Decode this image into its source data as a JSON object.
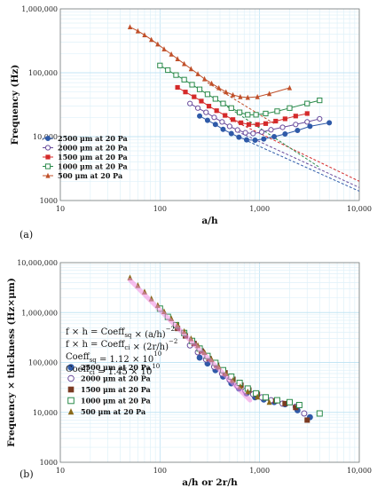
{
  "chart_data": [
    {
      "type": "scatter",
      "panel_label": "(a)",
      "xlabel": "a/h",
      "ylabel": "Frequency (Hz)",
      "xscale": "log",
      "yscale": "log",
      "xlim": [
        10,
        10000
      ],
      "ylim": [
        1000,
        1000000
      ],
      "x_ticks": [
        "10",
        "100",
        "1,000",
        "10,000"
      ],
      "y_ticks": [
        "1000",
        "10,000",
        "100,000",
        "1,000,000"
      ],
      "grid": true,
      "legend_position": "lower-left",
      "series": [
        {
          "name": "2500  μm at 20 Pa",
          "color": "#2f5aa8",
          "marker": "circle-filled",
          "x": [
            250,
            300,
            360,
            430,
            520,
            620,
            740,
            900,
            1100,
            1400,
            1800,
            2400,
            3200,
            5000
          ],
          "y": [
            21000,
            18000,
            15500,
            13000,
            11200,
            9800,
            8900,
            8800,
            9200,
            10000,
            11000,
            12500,
            14500,
            16500
          ],
          "fit_line": {
            "x": [
              700,
              10000
            ],
            "y": [
              9000,
              1400
            ]
          }
        },
        {
          "name": "2000  μm at 20 Pa",
          "color": "#6a4c9c",
          "marker": "circle-open",
          "x": [
            200,
            240,
            290,
            350,
            420,
            500,
            600,
            720,
            860,
            1050,
            1300,
            1700,
            2300,
            3000,
            4000
          ],
          "y": [
            33000,
            28000,
            24000,
            20000,
            17000,
            14500,
            12700,
            11500,
            11200,
            11800,
            12800,
            14000,
            15500,
            17000,
            19000
          ],
          "fit_line": {
            "x": [
              600,
              10000
            ],
            "y": [
              12000,
              1600
            ]
          }
        },
        {
          "name": "1500  μm at 20 Pa",
          "color": "#d42a2a",
          "marker": "square-filled",
          "x": [
            150,
            180,
            220,
            260,
            310,
            370,
            450,
            540,
            650,
            780,
            950,
            1150,
            1450,
            1800,
            2300,
            3000
          ],
          "y": [
            59000,
            50000,
            42000,
            36000,
            30000,
            25500,
            21500,
            18500,
            16500,
            15500,
            15500,
            16000,
            17500,
            19000,
            21000,
            23000
          ],
          "fit_line": {
            "x": [
              500,
              10000
            ],
            "y": [
              19000,
              2000
            ]
          }
        },
        {
          "name": "1000  μm at 20 Pa",
          "color": "#2a8a4a",
          "marker": "square-open",
          "x": [
            100,
            120,
            145,
            175,
            210,
            250,
            300,
            360,
            430,
            520,
            630,
            760,
            920,
            1150,
            1500,
            2000,
            3000,
            4000
          ],
          "y": [
            130000,
            110000,
            92000,
            78000,
            65000,
            55000,
            46000,
            39000,
            33000,
            28000,
            24000,
            22000,
            22000,
            23000,
            25000,
            28000,
            33000,
            37000
          ],
          "fit_line": {
            "x": [
              400,
              4000
            ],
            "y": [
              35000,
              3300
            ]
          }
        },
        {
          "name": "500  μm at 20 Pa",
          "color": "#c0502a",
          "marker": "triangle-filled",
          "x": [
            50,
            60,
            70,
            82,
            95,
            110,
            130,
            150,
            175,
            205,
            240,
            280,
            330,
            390,
            460,
            540,
            640,
            760,
            950,
            1250,
            2000
          ],
          "y": [
            520000,
            450000,
            390000,
            330000,
            280000,
            235000,
            195000,
            165000,
            138000,
            115000,
            96000,
            80000,
            68000,
            58000,
            50000,
            45000,
            42000,
            41000,
            42000,
            47000,
            58000
          ],
          "fit_line": {
            "x": [
              300,
              1400
            ],
            "y": [
              70000,
              16000
            ]
          }
        }
      ]
    },
    {
      "type": "scatter",
      "panel_label": "(b)",
      "xlabel": "a/h or 2r/h",
      "ylabel": "Frequency × thickness (Hz×μm)",
      "xscale": "log",
      "yscale": "log",
      "xlim": [
        10,
        10000
      ],
      "ylim": [
        1000,
        10000000
      ],
      "x_ticks": [
        "10",
        "100",
        "1,000",
        "10,000"
      ],
      "y_ticks": [
        "1000",
        "10,000",
        "100,000",
        "1,000,000",
        "10,000,000"
      ],
      "grid": true,
      "legend_position": "lower-left",
      "equations": [
        "f × h = Coeff_sq × (a/h)^−2",
        "f × h = Coeff_ci × (2r/h)^−2",
        "Coeff_sq = 1.12 × 10^10",
        "Coeff_ci = 1.45 × 10^10"
      ],
      "series": [
        {
          "name": "2500  μm at 20 Pa",
          "color": "#2f5aa8",
          "marker": "circle-filled",
          "x": [
            250,
            300,
            360,
            430,
            520,
            620,
            740,
            900,
            1100,
            1400,
            1800,
            2400,
            3200
          ],
          "y": [
            125000,
            95000,
            70000,
            52000,
            38000,
            30000,
            24000,
            20000,
            18000,
            16000,
            14500,
            11000,
            8000
          ]
        },
        {
          "name": "2000  μm at 20 Pa",
          "color": "#6a4c9c",
          "marker": "circle-open",
          "x": [
            200,
            240,
            290,
            350,
            420,
            500,
            600,
            720,
            860,
            1050,
            1300,
            1700,
            2300,
            2800
          ],
          "y": [
            220000,
            160000,
            115000,
            82000,
            60000,
            45000,
            34000,
            27000,
            23000,
            20000,
            17500,
            15000,
            13000,
            9500
          ]
        },
        {
          "name": "1500  μm at 20 Pa",
          "color": "#7a3a22",
          "marker": "square-filled",
          "x": [
            150,
            180,
            220,
            260,
            310,
            370,
            450,
            540,
            650,
            780,
            950,
            1150,
            1450,
            1800,
            2300,
            3000
          ],
          "y": [
            480000,
            340000,
            240000,
            170000,
            120000,
            88000,
            62000,
            46000,
            35000,
            28000,
            23000,
            19500,
            17000,
            15000,
            12500,
            7000
          ]
        },
        {
          "name": "1000  μm at 20 Pa",
          "color": "#2a8a4a",
          "marker": "square-open",
          "x": [
            100,
            120,
            145,
            175,
            210,
            250,
            300,
            360,
            430,
            520,
            630,
            760,
            920,
            1150,
            1500,
            2000,
            2500,
            4000
          ],
          "y": [
            1200000,
            820000,
            560000,
            390000,
            270000,
            190000,
            135000,
            98000,
            70000,
            52000,
            39000,
            30000,
            24000,
            20000,
            17500,
            16000,
            14000,
            9500
          ]
        },
        {
          "name": "500  μm at 20 Pa",
          "color": "#8a6a1a",
          "marker": "triangle-filled",
          "x": [
            50,
            60,
            70,
            82,
            95,
            110,
            130,
            150,
            175,
            205,
            240,
            280,
            330,
            390,
            460,
            540,
            640,
            760,
            950,
            1250
          ],
          "y": [
            5000000,
            3500000,
            2600000,
            1900000,
            1400000,
            1050000,
            760000,
            570000,
            420000,
            300000,
            220000,
            160000,
            115000,
            82000,
            60000,
            44000,
            33000,
            26000,
            20500,
            16000
          ]
        },
        {
          "name": "fit",
          "color": "#f08be0",
          "marker": "none",
          "x": [
            50,
            100,
            200,
            400,
            800
          ],
          "y": [
            4480000,
            1120000,
            280000,
            70000,
            17500
          ]
        }
      ]
    }
  ]
}
